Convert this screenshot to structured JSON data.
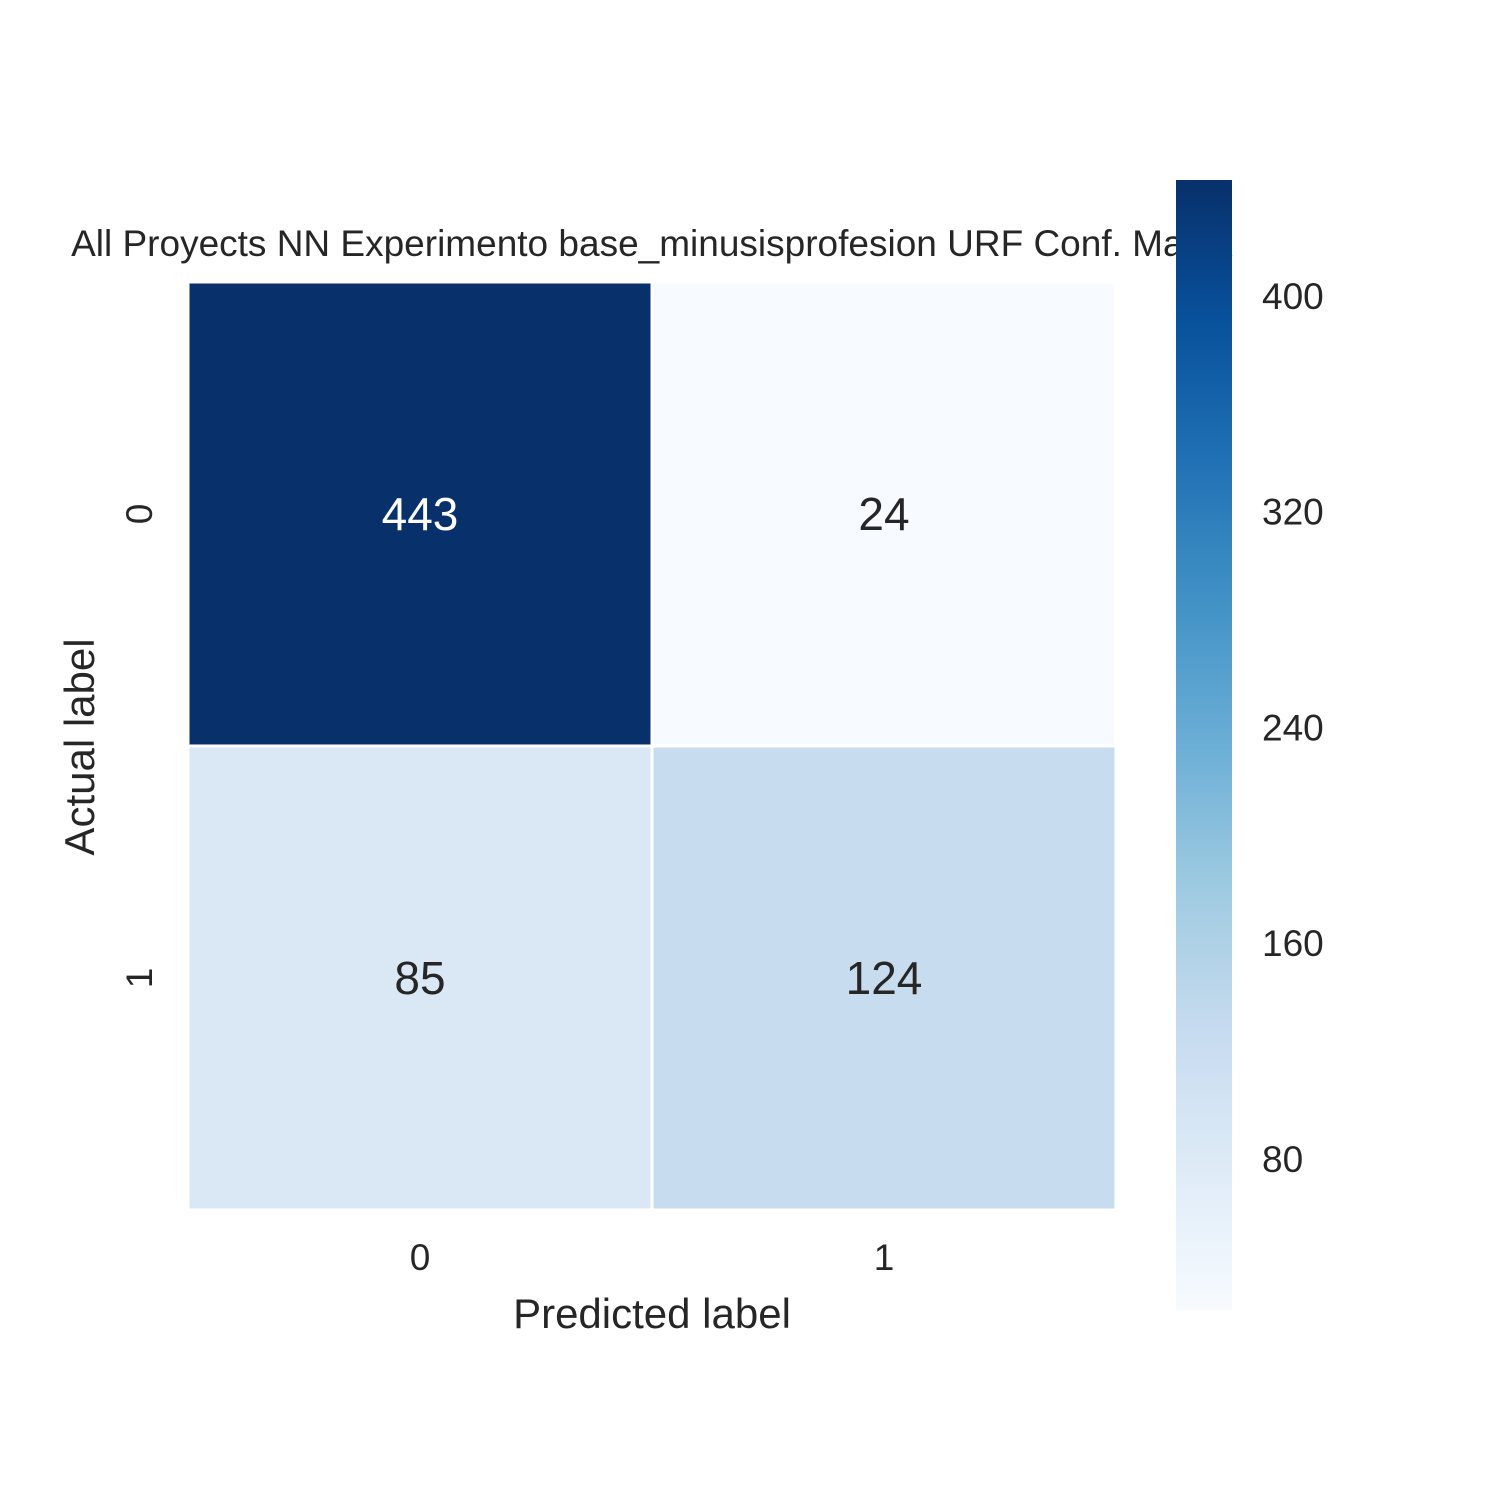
{
  "chart_data": {
    "type": "heatmap",
    "title": "All Proyects NN Experimento base_minusisprofesion URF Conf. Matrix",
    "xlabel": "Predicted label",
    "ylabel": "Actual label",
    "x_categories": [
      "0",
      "1"
    ],
    "y_categories": [
      "0",
      "1"
    ],
    "values": [
      [
        443,
        24
      ],
      [
        85,
        124
      ]
    ],
    "colormap": "Blues",
    "colorbar": {
      "range": [
        24,
        443
      ],
      "ticks": [
        80,
        160,
        240,
        320,
        400
      ],
      "tick_labels": [
        "80",
        "160",
        "240",
        "320",
        "400"
      ]
    },
    "cell_text_colors": {
      "dark_cell": "#ffffff",
      "light_cell": "#262626"
    },
    "grid": false
  }
}
